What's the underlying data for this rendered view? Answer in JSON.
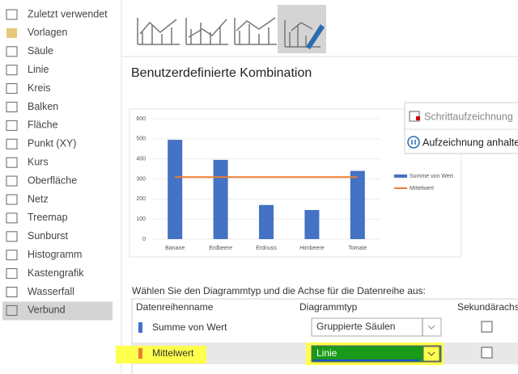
{
  "sidebar": {
    "items": [
      "Zuletzt verwendet",
      "Vorlagen",
      "Säule",
      "Linie",
      "Kreis",
      "Balken",
      "Fläche",
      "Punkt (XY)",
      "Kurs",
      "Oberfläche",
      "Netz",
      "Treemap",
      "Sunburst",
      "Histogramm",
      "Kastengrafik",
      "Wasserfall",
      "Verbund"
    ],
    "selected": 16
  },
  "heading": "Benutzerdefinierte Kombination",
  "chart_data": {
    "type": "combo",
    "categories": [
      "Banane",
      "Erdbeere",
      "Erdnuss",
      "Himbeere",
      "Tomate"
    ],
    "series": [
      {
        "name": "Summe von Wert",
        "type": "bar",
        "color": "#4472c4",
        "values": [
          495,
          395,
          170,
          145,
          340
        ]
      },
      {
        "name": "Mittelwert",
        "type": "line",
        "color": "#ed7d31",
        "values": [
          309,
          309,
          309,
          309,
          309
        ]
      }
    ],
    "ylim": [
      0,
      600
    ],
    "yticks": [
      0,
      100,
      200,
      300,
      400,
      500,
      600
    ]
  },
  "popup": {
    "items": [
      "Schrittaufzeichnung",
      "Aufzeichnung anhalte"
    ]
  },
  "series_section": {
    "prompt": "Wählen Sie den Diagrammtyp und die Achse für die Datenreihe aus:",
    "columns": [
      "Datenreihenname",
      "Diagrammtyp",
      "Sekundärachse"
    ],
    "rows": [
      [
        "Summe von Wert",
        "Gruppierte Säulen"
      ],
      [
        "Mittelwert",
        "Linie"
      ]
    ]
  }
}
